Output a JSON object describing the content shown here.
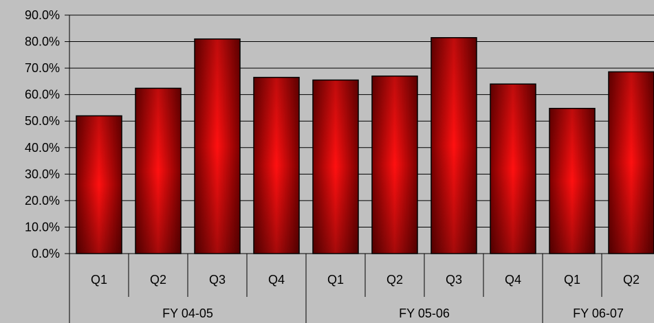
{
  "chart_data": {
    "type": "bar",
    "y_ticks": [
      "0.0%",
      "10.0%",
      "20.0%",
      "30.0%",
      "40.0%",
      "50.0%",
      "60.0%",
      "70.0%",
      "80.0%",
      "90.0%"
    ],
    "ylim": [
      0,
      90
    ],
    "grid": true,
    "categories": [
      "Q1",
      "Q2",
      "Q3",
      "Q4",
      "Q1",
      "Q2",
      "Q3",
      "Q4",
      "Q1",
      "Q2"
    ],
    "groups": [
      {
        "label": "FY 04-05",
        "count": 4
      },
      {
        "label": "FY 05-06",
        "count": 4
      },
      {
        "label": "FY 06-07",
        "count": 2
      }
    ],
    "series": [
      {
        "values": [
          52.0,
          62.4,
          81.0,
          66.5,
          65.5,
          67.0,
          81.5,
          64.0,
          54.8,
          68.6
        ]
      }
    ],
    "colors": {
      "bar_dark": "#7a0000",
      "bar_light": "#ff1010",
      "background": "#c0c0c0"
    }
  }
}
